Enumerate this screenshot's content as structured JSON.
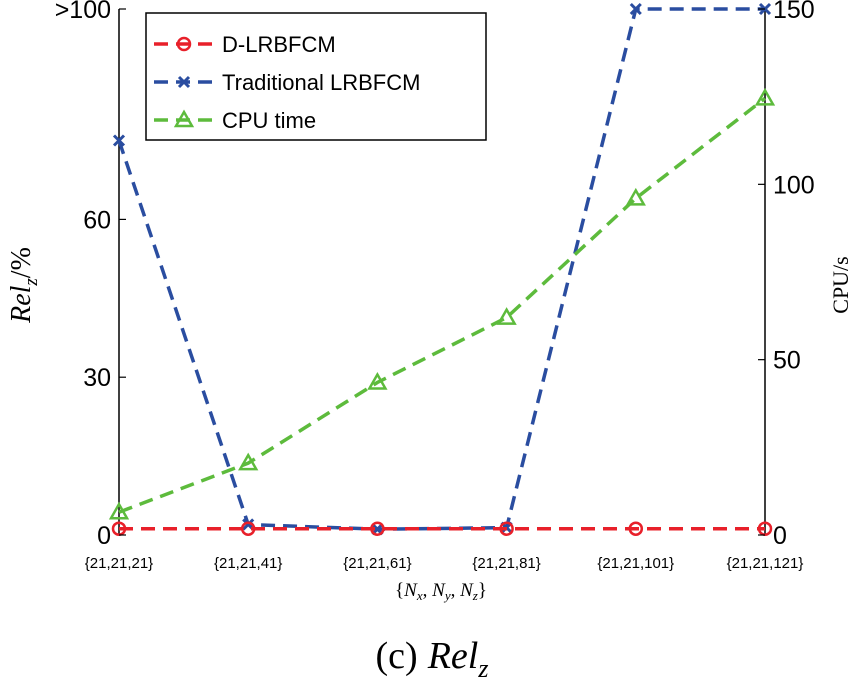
{
  "chart_data": {
    "type": "line",
    "title": "",
    "caption_prefix": "(c)",
    "caption_symbol": "Rel",
    "caption_sub": "z",
    "categories": [
      "{21,21,21}",
      "{21,21,41}",
      "{21,21,61}",
      "{21,21,81}",
      "{21,21,101}",
      "{21,21,121}"
    ],
    "xlabel": "{N_x, N_y, N_z}",
    "xlabel_parts": [
      "{",
      "N",
      "x",
      ", ",
      "N",
      "y",
      ", ",
      "N",
      "z",
      "}"
    ],
    "ylabel_left_symbol": "Rel",
    "ylabel_left_sub": "z",
    "ylabel_left_unit": "/%",
    "ylabel_right": "CPU/s",
    "ylim_left": [
      0,
      100
    ],
    "ylim_right": [
      0,
      150
    ],
    "yticks_left": [
      0,
      30,
      60,
      100
    ],
    "ytick_labels_left": [
      "0",
      "30",
      "60",
      ">100"
    ],
    "yticks_right": [
      0,
      50,
      100,
      150
    ],
    "ytick_labels_right": [
      "0",
      "50",
      "100",
      "150"
    ],
    "legend_position": "top-left",
    "series": [
      {
        "name": "D-LRBFCM",
        "axis": "left",
        "color": "#e8202a",
        "marker": "circle",
        "values": [
          1.2,
          1.2,
          1.2,
          1.2,
          1.2,
          1.2
        ]
      },
      {
        "name": "Traditional LRBFCM",
        "axis": "left",
        "color": "#2a4da0",
        "marker": "x",
        "values": [
          75,
          2.0,
          1.1,
          1.4,
          100,
          100
        ]
      },
      {
        "name": "CPU time",
        "axis": "right",
        "color": "#5dbb3c",
        "marker": "triangle",
        "values": [
          6.5,
          20.5,
          43.5,
          62,
          96,
          124.5
        ]
      }
    ]
  }
}
